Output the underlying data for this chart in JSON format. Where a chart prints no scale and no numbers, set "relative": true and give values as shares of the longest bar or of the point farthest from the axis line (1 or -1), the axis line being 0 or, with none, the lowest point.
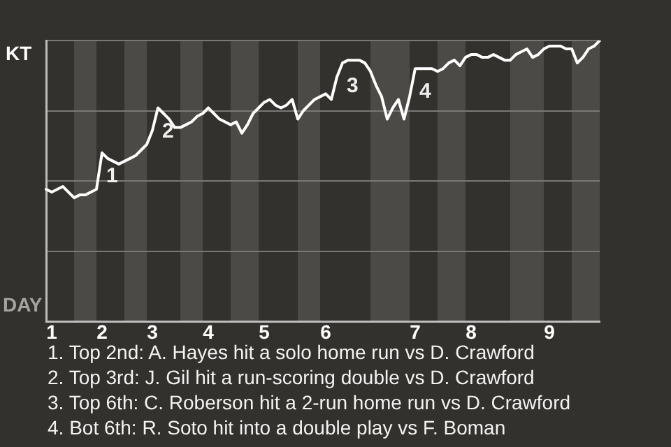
{
  "chart_data": {
    "type": "line",
    "relative": true,
    "categories": [
      null,
      "1",
      null,
      null,
      null,
      null,
      null,
      null,
      null,
      null,
      "2",
      null,
      null,
      null,
      null,
      null,
      null,
      null,
      null,
      "3",
      null,
      null,
      null,
      null,
      null,
      null,
      null,
      null,
      null,
      "4",
      null,
      null,
      null,
      null,
      null,
      null,
      null,
      null,
      null,
      "5",
      null,
      null,
      null,
      null,
      null,
      null,
      null,
      null,
      null,
      null,
      "6",
      null,
      null,
      null,
      null,
      null,
      null,
      null,
      null,
      null,
      null,
      null,
      null,
      null,
      null,
      null,
      "7",
      null,
      null,
      null,
      null,
      null,
      null,
      null,
      null,
      null,
      "8",
      null,
      null,
      null,
      null,
      null,
      null,
      null,
      null,
      null,
      null,
      null,
      null,
      null,
      "9",
      null,
      null,
      null,
      null,
      null,
      null,
      null,
      null,
      null
    ],
    "grid": "y",
    "legend": false,
    "marker": "none",
    "line_style": "solid",
    "series": [
      {
        "color": "#ffffff",
        "values": [
          0.47,
          0.46,
          0.47,
          0.48,
          0.46,
          0.44,
          0.45,
          0.45,
          0.46,
          0.47,
          0.6,
          0.58,
          0.57,
          0.56,
          0.57,
          0.58,
          0.59,
          0.61,
          0.63,
          0.68,
          0.76,
          0.74,
          0.72,
          0.69,
          0.69,
          0.7,
          0.71,
          0.73,
          0.74,
          0.76,
          0.74,
          0.72,
          0.71,
          0.7,
          0.71,
          0.67,
          0.7,
          0.74,
          0.76,
          0.78,
          0.79,
          0.77,
          0.76,
          0.77,
          0.79,
          0.72,
          0.75,
          0.77,
          0.79,
          0.8,
          0.81,
          0.79,
          0.87,
          0.92,
          0.93,
          0.93,
          0.93,
          0.92,
          0.89,
          0.84,
          0.8,
          0.72,
          0.76,
          0.79,
          0.72,
          0.8,
          0.9,
          0.9,
          0.9,
          0.9,
          0.89,
          0.9,
          0.92,
          0.93,
          0.91,
          0.94,
          0.95,
          0.95,
          0.94,
          0.94,
          0.95,
          0.94,
          0.93,
          0.93,
          0.95,
          0.96,
          0.97,
          0.94,
          0.95,
          0.97,
          0.98,
          0.98,
          0.98,
          0.97,
          0.97,
          0.92,
          0.94,
          0.97,
          0.98,
          1
        ]
      }
    ],
    "annotations": [
      {
        "text": "1",
        "y": 0.6
      },
      {
        "text": "2",
        "y": 0.76
      },
      {
        "text": "3",
        "y": 0.92
      },
      {
        "text": "4",
        "y": 0.9
      },
      "KT",
      "DAY",
      "1. Top 2nd: A. Hayes hit a solo home run vs D. Crawford",
      "2. Top 3rd: J. Gil hit a run-scoring double vs D. Crawford",
      "3. Top 6th: C. Roberson hit a 2-run home run vs D. Crawford",
      "4. Bot 6th: R. Soto hit into a double play vs F. Boman"
    ]
  }
}
